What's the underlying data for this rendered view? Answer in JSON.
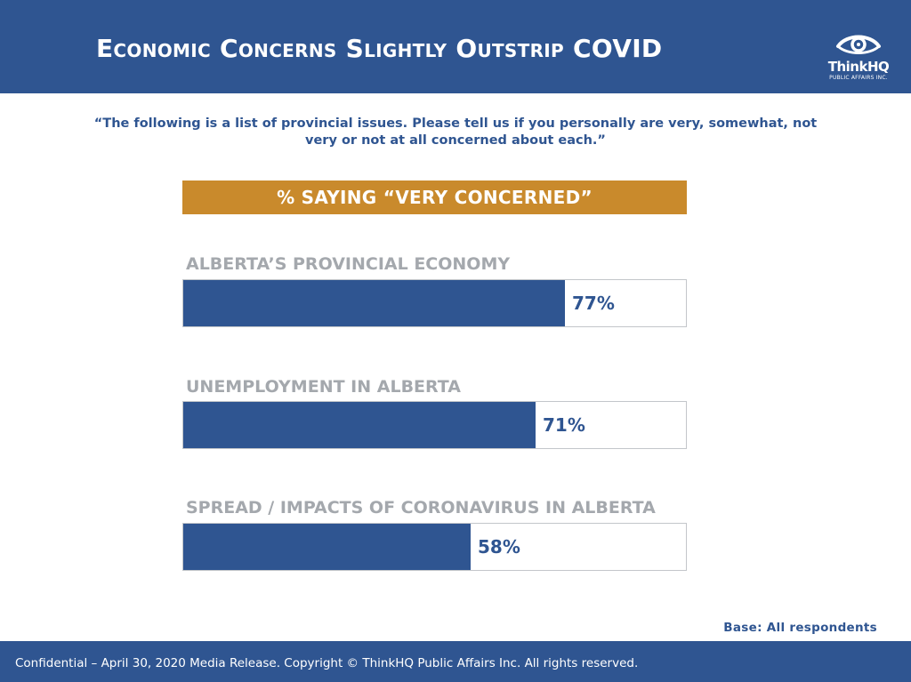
{
  "header": {
    "title": "Economic Concerns Slightly Outstrip COVID",
    "logo_name": "ThinkHQ",
    "logo_sub": "PUBLIC AFFAIRS INC."
  },
  "question": "“The following is a list of provincial issues. Please tell us if you personally are very, somewhat, not very or not at all concerned about each.”",
  "measure_label": "% SAYING “VERY CONCERNED”",
  "chart_data": {
    "type": "bar",
    "orientation": "horizontal",
    "categories": [
      "ALBERTA’S PROVINCIAL ECONOMY",
      "UNEMPLOYMENT IN ALBERTA",
      "SPREAD / IMPACTS OF CORONAVIRUS IN ALBERTA"
    ],
    "values": [
      77,
      71,
      58
    ],
    "value_labels": [
      "77%",
      "71%",
      "58%"
    ],
    "xlim": [
      0,
      100
    ],
    "grid": false,
    "bar_color": "#2f5591"
  },
  "base_note": "Base: All respondents",
  "footer": {
    "text": "Confidential – April 30, 2020 Media Release. Copyright © ThinkHQ Public Affairs Inc. All rights reserved."
  },
  "colors": {
    "brand_blue": "#2f5591",
    "accent_orange": "#c98a2c",
    "label_gray": "#a4a8ad"
  },
  "icons": {
    "logo": "eye-icon"
  }
}
